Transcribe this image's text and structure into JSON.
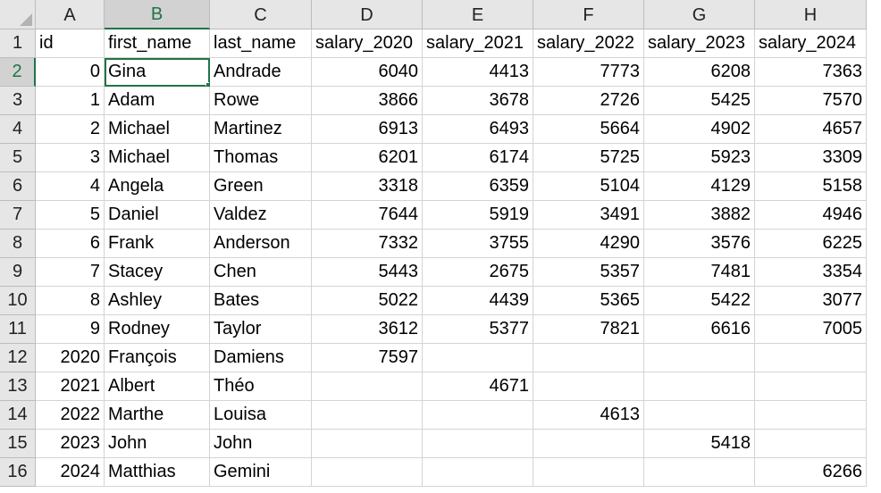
{
  "columns": [
    "A",
    "B",
    "C",
    "D",
    "E",
    "F",
    "G",
    "H"
  ],
  "selected_column": "B",
  "selected_row": 2,
  "rows": [
    {
      "n": "1",
      "cells": [
        "id",
        "first_name",
        "last_name",
        "salary_2020",
        "salary_2021",
        "salary_2022",
        "salary_2023",
        "salary_2024"
      ]
    },
    {
      "n": "2",
      "cells": [
        "0",
        "Gina",
        "Andrade",
        "6040",
        "4413",
        "7773",
        "6208",
        "7363"
      ]
    },
    {
      "n": "3",
      "cells": [
        "1",
        "Adam",
        "Rowe",
        "3866",
        "3678",
        "2726",
        "5425",
        "7570"
      ]
    },
    {
      "n": "4",
      "cells": [
        "2",
        "Michael",
        "Martinez",
        "6913",
        "6493",
        "5664",
        "4902",
        "4657"
      ]
    },
    {
      "n": "5",
      "cells": [
        "3",
        "Michael",
        "Thomas",
        "6201",
        "6174",
        "5725",
        "5923",
        "3309"
      ]
    },
    {
      "n": "6",
      "cells": [
        "4",
        "Angela",
        "Green",
        "3318",
        "6359",
        "5104",
        "4129",
        "5158"
      ]
    },
    {
      "n": "7",
      "cells": [
        "5",
        "Daniel",
        "Valdez",
        "7644",
        "5919",
        "3491",
        "3882",
        "4946"
      ]
    },
    {
      "n": "8",
      "cells": [
        "6",
        "Frank",
        "Anderson",
        "7332",
        "3755",
        "4290",
        "3576",
        "6225"
      ]
    },
    {
      "n": "9",
      "cells": [
        "7",
        "Stacey",
        "Chen",
        "5443",
        "2675",
        "5357",
        "7481",
        "3354"
      ]
    },
    {
      "n": "10",
      "cells": [
        "8",
        "Ashley",
        "Bates",
        "5022",
        "4439",
        "5365",
        "5422",
        "3077"
      ]
    },
    {
      "n": "11",
      "cells": [
        "9",
        "Rodney",
        "Taylor",
        "3612",
        "5377",
        "7821",
        "6616",
        "7005"
      ]
    },
    {
      "n": "12",
      "cells": [
        "2020",
        "François",
        "Damiens",
        "7597",
        "",
        "",
        "",
        ""
      ]
    },
    {
      "n": "13",
      "cells": [
        "2021",
        "Albert",
        "Théo",
        "",
        "4671",
        "",
        "",
        ""
      ]
    },
    {
      "n": "14",
      "cells": [
        "2022",
        "Marthe",
        "Louisa",
        "",
        "",
        "4613",
        "",
        ""
      ]
    },
    {
      "n": "15",
      "cells": [
        "2023",
        "John",
        "John",
        "",
        "",
        "",
        "5418",
        ""
      ]
    },
    {
      "n": "16",
      "cells": [
        "2024",
        "Matthias",
        "Gemini",
        "",
        "",
        "",
        "",
        "6266"
      ]
    }
  ]
}
